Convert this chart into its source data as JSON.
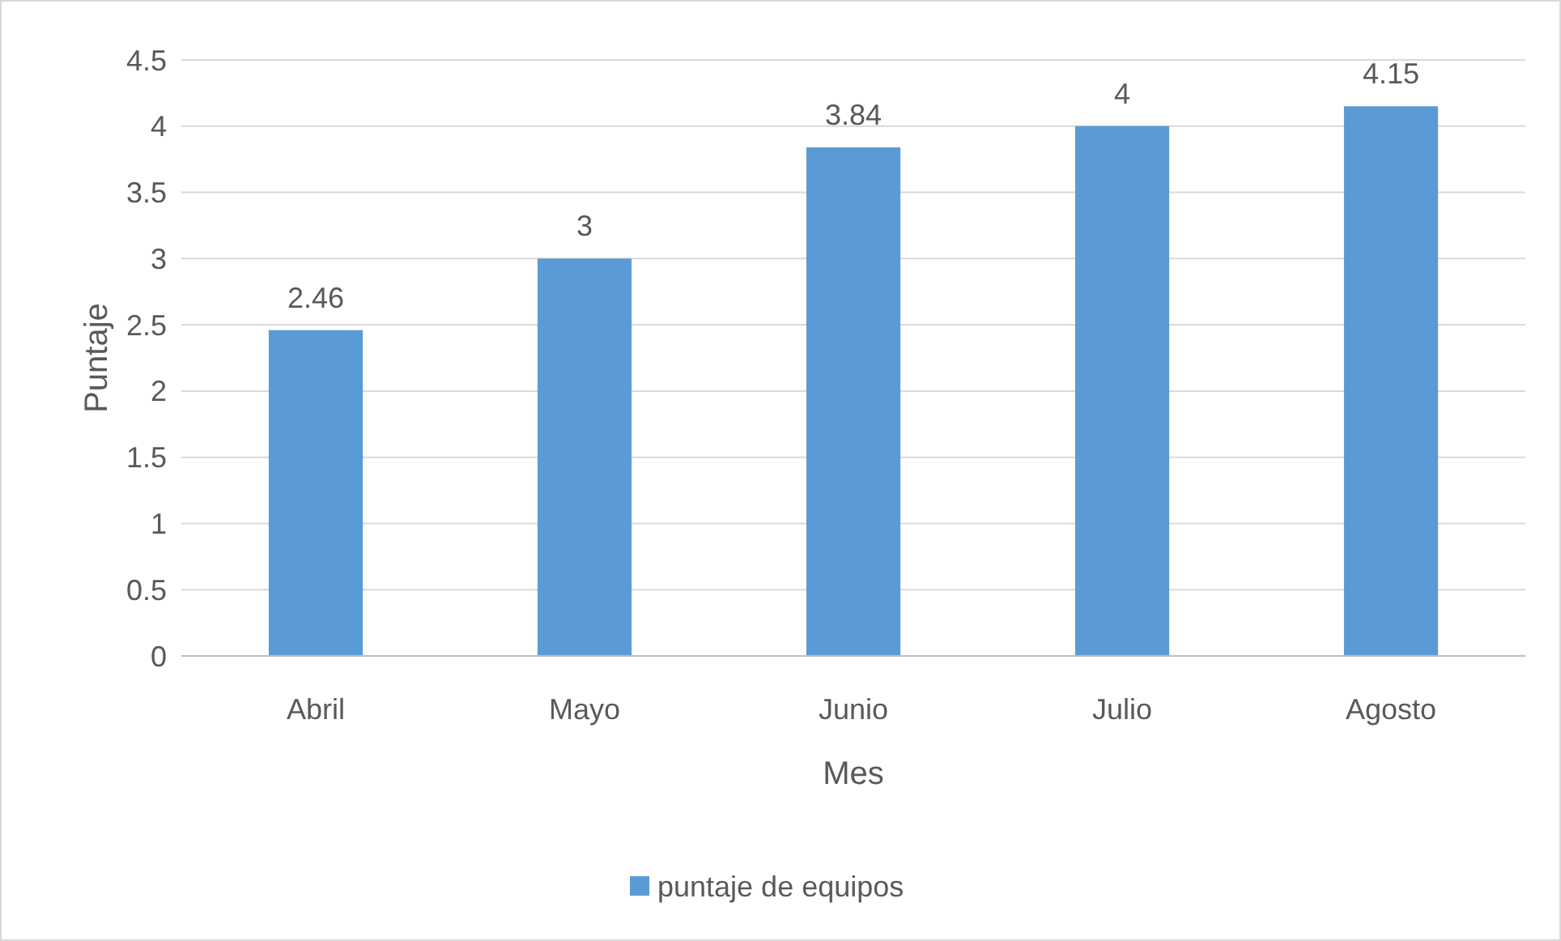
{
  "chart_data": {
    "type": "bar",
    "xlabel": "Mes",
    "ylabel": "Puntaje",
    "categories": [
      "Abril",
      "Mayo",
      "Junio",
      "Julio",
      "Agosto"
    ],
    "series": [
      {
        "name": "puntaje de equipos",
        "color": "#5b9bd5",
        "values": [
          2.46,
          3,
          3.84,
          4,
          4.15
        ]
      }
    ],
    "ylim": [
      0,
      4.5
    ],
    "yticks": [
      0,
      0.5,
      1,
      1.5,
      2,
      2.5,
      3,
      3.5,
      4,
      4.5
    ],
    "grid": "y",
    "legend": "bottom",
    "data_labels": true
  }
}
